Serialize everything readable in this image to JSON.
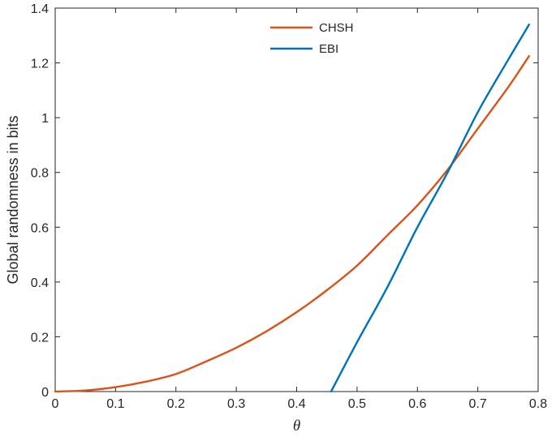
{
  "chart_data": {
    "type": "line",
    "xlabel": "θ",
    "ylabel": "Global randomness in bits",
    "xlim": [
      0,
      0.8
    ],
    "ylim": [
      0,
      1.4
    ],
    "xticks": [
      "0",
      "0.1",
      "0.2",
      "0.3",
      "0.4",
      "0.5",
      "0.6",
      "0.7",
      "0.8"
    ],
    "yticks": [
      "0",
      "0.2",
      "0.4",
      "0.6",
      "0.8",
      "1",
      "1.2",
      "1.4"
    ],
    "grid": false,
    "legend": "top-center",
    "series": [
      {
        "name": "CHSH",
        "color": "#d95319",
        "x": [
          0,
          0.05,
          0.1,
          0.15,
          0.2,
          0.25,
          0.3,
          0.35,
          0.4,
          0.45,
          0.5,
          0.55,
          0.6,
          0.65,
          0.7,
          0.75,
          0.785
        ],
        "y": [
          0,
          0.004,
          0.016,
          0.036,
          0.064,
          0.11,
          0.16,
          0.22,
          0.29,
          0.37,
          0.46,
          0.57,
          0.68,
          0.81,
          0.96,
          1.11,
          1.225
        ]
      },
      {
        "name": "EBI",
        "color": "#0072bd",
        "x": [
          0.457,
          0.5,
          0.55,
          0.6,
          0.65,
          0.7,
          0.75,
          0.785
        ],
        "y": [
          0,
          0.18,
          0.38,
          0.6,
          0.8,
          1.02,
          1.21,
          1.34
        ]
      }
    ]
  }
}
